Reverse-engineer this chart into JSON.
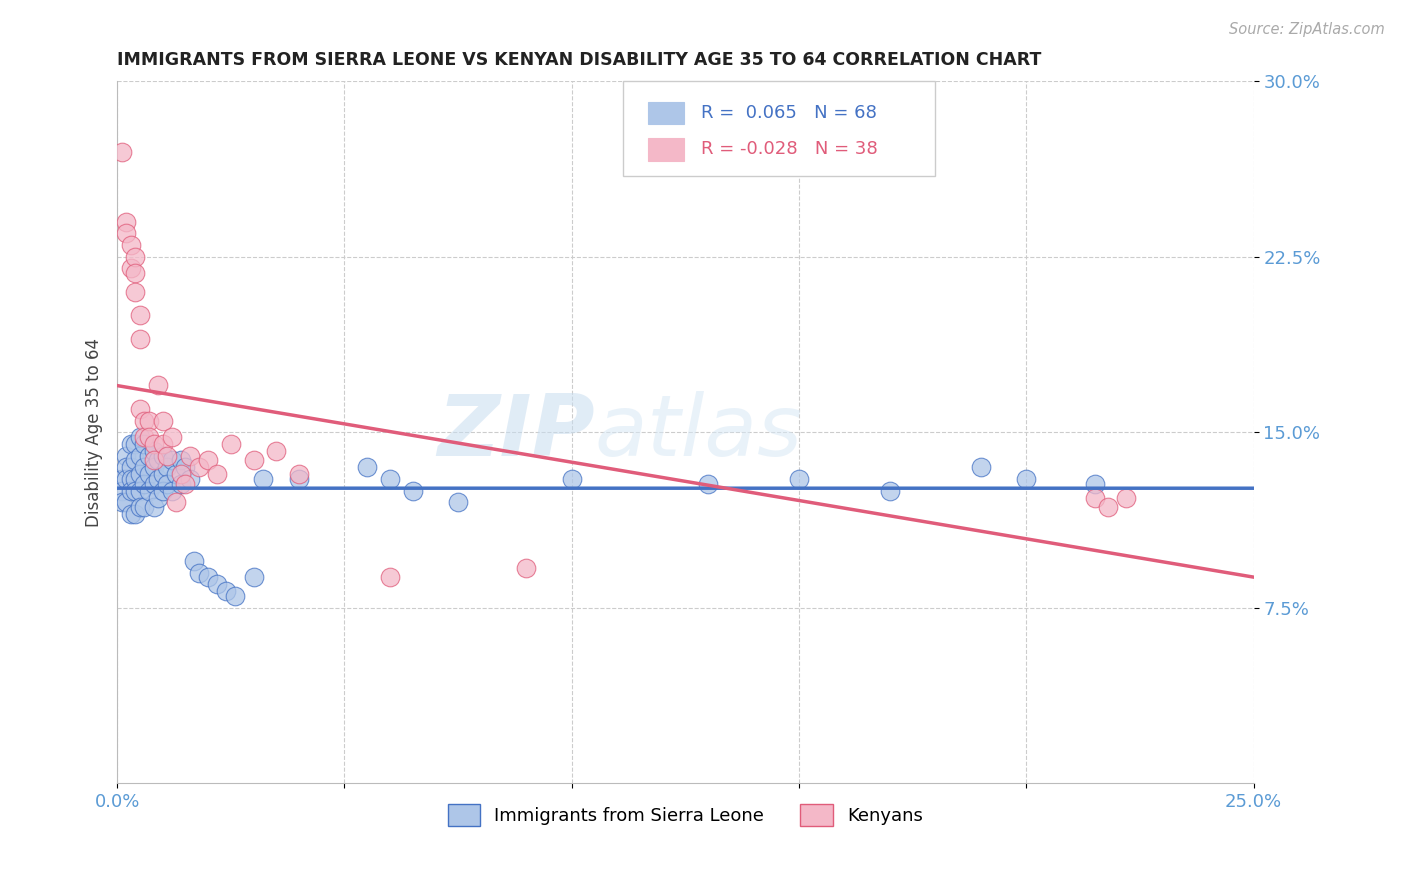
{
  "title": "IMMIGRANTS FROM SIERRA LEONE VS KENYAN DISABILITY AGE 35 TO 64 CORRELATION CHART",
  "source": "Source: ZipAtlas.com",
  "ylabel": "Disability Age 35 to 64",
  "xlim": [
    0.0,
    0.25
  ],
  "ylim": [
    0.0,
    0.3
  ],
  "xticks": [
    0.0,
    0.05,
    0.1,
    0.15,
    0.2,
    0.25
  ],
  "yticks": [
    0.075,
    0.15,
    0.225,
    0.3
  ],
  "xtick_labels": [
    "0.0%",
    "",
    "",
    "",
    "",
    "25.0%"
  ],
  "ytick_labels": [
    "7.5%",
    "15.0%",
    "22.5%",
    "30.0%"
  ],
  "legend1_R": "0.065",
  "legend1_N": "68",
  "legend2_R": "-0.028",
  "legend2_N": "38",
  "color_blue": "#aec6e8",
  "color_pink": "#f4b8c8",
  "line_color_blue": "#4472c4",
  "line_color_pink": "#e05c7a",
  "watermark_zip": "ZIP",
  "watermark_atlas": "atlas",
  "blue_x": [
    0.001,
    0.001,
    0.001,
    0.002,
    0.002,
    0.002,
    0.002,
    0.003,
    0.003,
    0.003,
    0.003,
    0.003,
    0.004,
    0.004,
    0.004,
    0.004,
    0.004,
    0.005,
    0.005,
    0.005,
    0.005,
    0.005,
    0.006,
    0.006,
    0.006,
    0.006,
    0.007,
    0.007,
    0.007,
    0.008,
    0.008,
    0.008,
    0.008,
    0.009,
    0.009,
    0.009,
    0.01,
    0.01,
    0.01,
    0.011,
    0.011,
    0.012,
    0.012,
    0.013,
    0.014,
    0.014,
    0.015,
    0.016,
    0.017,
    0.018,
    0.02,
    0.022,
    0.024,
    0.026,
    0.03,
    0.032,
    0.04,
    0.055,
    0.06,
    0.065,
    0.075,
    0.1,
    0.13,
    0.15,
    0.17,
    0.19,
    0.2,
    0.215
  ],
  "blue_y": [
    0.13,
    0.125,
    0.12,
    0.14,
    0.135,
    0.13,
    0.12,
    0.145,
    0.135,
    0.13,
    0.125,
    0.115,
    0.145,
    0.138,
    0.13,
    0.125,
    0.115,
    0.148,
    0.14,
    0.132,
    0.125,
    0.118,
    0.145,
    0.135,
    0.128,
    0.118,
    0.14,
    0.132,
    0.125,
    0.142,
    0.135,
    0.128,
    0.118,
    0.138,
    0.13,
    0.122,
    0.14,
    0.132,
    0.125,
    0.135,
    0.128,
    0.138,
    0.125,
    0.132,
    0.138,
    0.128,
    0.135,
    0.13,
    0.095,
    0.09,
    0.088,
    0.085,
    0.082,
    0.08,
    0.088,
    0.13,
    0.13,
    0.135,
    0.13,
    0.125,
    0.12,
    0.13,
    0.128,
    0.13,
    0.125,
    0.135,
    0.13,
    0.128
  ],
  "pink_x": [
    0.001,
    0.002,
    0.002,
    0.003,
    0.003,
    0.004,
    0.004,
    0.004,
    0.005,
    0.005,
    0.005,
    0.006,
    0.006,
    0.007,
    0.007,
    0.008,
    0.008,
    0.009,
    0.01,
    0.01,
    0.011,
    0.012,
    0.013,
    0.014,
    0.015,
    0.016,
    0.018,
    0.02,
    0.022,
    0.025,
    0.03,
    0.035,
    0.04,
    0.06,
    0.09,
    0.215,
    0.218,
    0.222
  ],
  "pink_y": [
    0.27,
    0.24,
    0.235,
    0.23,
    0.22,
    0.225,
    0.218,
    0.21,
    0.2,
    0.19,
    0.16,
    0.155,
    0.148,
    0.155,
    0.148,
    0.145,
    0.138,
    0.17,
    0.155,
    0.145,
    0.14,
    0.148,
    0.12,
    0.132,
    0.128,
    0.14,
    0.135,
    0.138,
    0.132,
    0.145,
    0.138,
    0.142,
    0.132,
    0.088,
    0.092,
    0.122,
    0.118,
    0.122
  ]
}
